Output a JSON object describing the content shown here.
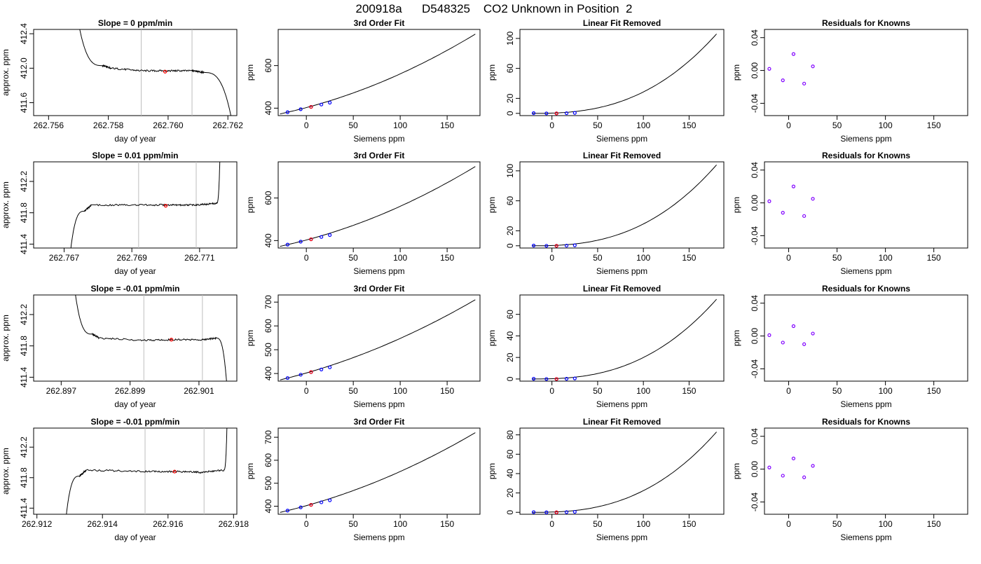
{
  "title": "200918a      D548325    CO2 Unknown in Position  2",
  "colors": {
    "trace": "#000000",
    "point_edge": "#0000ff",
    "point_unknown": "#ff0000",
    "residual": "#8000ff",
    "window": "#bebebe"
  },
  "rows": [
    {
      "p1": {
        "title": "Slope =  0  ppm/min",
        "xlabel": "day of year",
        "ylabel": "approx. ppm",
        "xticks": [
          "262.756",
          "262.758",
          "262.760",
          "262.762"
        ],
        "yticks": [
          "411.6",
          "412.0",
          "412.4"
        ]
      },
      "p2": {
        "title": "3rd Order Fit",
        "xlabel": "Siemens ppm",
        "ylabel": "ppm",
        "xticks": [
          "0",
          "50",
          "100",
          "150"
        ],
        "yticks": [
          "400",
          "600"
        ]
      },
      "p3": {
        "title": "Linear Fit Removed",
        "xlabel": "Siemens ppm",
        "ylabel": "ppm",
        "xticks": [
          "0",
          "50",
          "100",
          "150"
        ],
        "yticks": [
          "0",
          "20",
          "60",
          "100"
        ]
      },
      "p4": {
        "title": "Residuals for Knowns",
        "xlabel": "Siemens ppm",
        "ylabel": "ppm",
        "xticks": [
          "0",
          "50",
          "100",
          "150"
        ],
        "yticks": [
          "-0.04",
          "0.00",
          "0.04"
        ]
      }
    },
    {
      "p1": {
        "title": "Slope =  0.01  ppm/min",
        "xlabel": "day of year",
        "ylabel": "approx. ppm",
        "xticks": [
          "262.767",
          "262.769",
          "262.771"
        ],
        "yticks": [
          "411.4",
          "411.8",
          "412.2"
        ]
      },
      "p2": {
        "title": "3rd Order Fit",
        "xlabel": "Siemens ppm",
        "ylabel": "ppm",
        "xticks": [
          "0",
          "50",
          "100",
          "150"
        ],
        "yticks": [
          "400",
          "600"
        ]
      },
      "p3": {
        "title": "Linear Fit Removed",
        "xlabel": "Siemens ppm",
        "ylabel": "ppm",
        "xticks": [
          "0",
          "50",
          "100",
          "150"
        ],
        "yticks": [
          "0",
          "20",
          "60",
          "100"
        ]
      },
      "p4": {
        "title": "Residuals for Knowns",
        "xlabel": "Siemens ppm",
        "ylabel": "ppm",
        "xticks": [
          "0",
          "50",
          "100",
          "150"
        ],
        "yticks": [
          "-0.04",
          "0.00",
          "0.04"
        ]
      }
    },
    {
      "p1": {
        "title": "Slope =  -0.01  ppm/min",
        "xlabel": "day of year",
        "ylabel": "approx. ppm",
        "xticks": [
          "262.897",
          "262.899",
          "262.901"
        ],
        "yticks": [
          "411.4",
          "411.8",
          "412.2"
        ]
      },
      "p2": {
        "title": "3rd Order Fit",
        "xlabel": "Siemens ppm",
        "ylabel": "ppm",
        "xticks": [
          "0",
          "50",
          "100",
          "150"
        ],
        "yticks": [
          "400",
          "500",
          "600",
          "700"
        ]
      },
      "p3": {
        "title": "Linear Fit Removed",
        "xlabel": "Siemens ppm",
        "ylabel": "ppm",
        "xticks": [
          "0",
          "50",
          "100",
          "150"
        ],
        "yticks": [
          "0",
          "20",
          "40",
          "60"
        ]
      },
      "p4": {
        "title": "Residuals for Knowns",
        "xlabel": "Siemens ppm",
        "ylabel": "ppm",
        "xticks": [
          "0",
          "50",
          "100",
          "150"
        ],
        "yticks": [
          "-0.04",
          "0.00",
          "0.04"
        ]
      }
    },
    {
      "p1": {
        "title": "Slope =  -0.01  ppm/min",
        "xlabel": "day of year",
        "ylabel": "approx. ppm",
        "xticks": [
          "262.912",
          "262.914",
          "262.916",
          "262.918"
        ],
        "yticks": [
          "411.4",
          "411.8",
          "412.2"
        ]
      },
      "p2": {
        "title": "3rd Order Fit",
        "xlabel": "Siemens ppm",
        "ylabel": "ppm",
        "xticks": [
          "0",
          "50",
          "100",
          "150"
        ],
        "yticks": [
          "400",
          "500",
          "600",
          "700"
        ]
      },
      "p3": {
        "title": "Linear Fit Removed",
        "xlabel": "Siemens ppm",
        "ylabel": "ppm",
        "xticks": [
          "0",
          "50",
          "100",
          "150"
        ],
        "yticks": [
          "0",
          "20",
          "40",
          "60",
          "80"
        ]
      },
      "p4": {
        "title": "Residuals for Knowns",
        "xlabel": "Siemens ppm",
        "ylabel": "ppm",
        "xticks": [
          "0",
          "50",
          "100",
          "150"
        ],
        "yticks": [
          "-0.04",
          "0.00",
          "0.04"
        ]
      }
    }
  ],
  "chart_data": [
    {
      "type": "line",
      "title": "Slope =  0  ppm/min",
      "xlabel": "day of year",
      "ylabel": "approx. ppm",
      "xlim": [
        262.7555,
        262.7623
      ],
      "ylim": [
        411.45,
        412.45
      ],
      "series": [
        {
          "x": [
            262.7568,
            262.7578,
            262.7581,
            262.7591,
            262.76,
            262.7608,
            262.7612,
            262.7621
          ],
          "y": [
            413.0,
            412.03,
            412.0,
            411.97,
            411.97,
            411.97,
            411.95,
            411.45
          ]
        }
      ],
      "window": [
        262.7591,
        262.7608
      ],
      "unknown_point": {
        "x": 262.7599,
        "y": 411.96
      }
    },
    {
      "type": "scatter",
      "title": "3rd Order Fit",
      "xlabel": "Siemens ppm",
      "ylabel": "ppm",
      "xlim": [
        -30,
        185
      ],
      "ylim": [
        365,
        770
      ],
      "knowns": {
        "x": [
          -20,
          -6,
          5,
          16,
          25
        ],
        "y": [
          381,
          395,
          406,
          417,
          426
        ]
      },
      "unknown": {
        "x": 5,
        "y": 406
      },
      "fit_endpoints": {
        "x": [
          -28,
          180
        ],
        "y": [
          373,
          748
        ]
      }
    },
    {
      "type": "scatter",
      "title": "Linear Fit Removed",
      "xlabel": "Siemens ppm",
      "ylabel": "ppm",
      "xlim": [
        -35,
        188
      ],
      "ylim": [
        -3,
        112
      ],
      "knowns": {
        "x": [
          -20,
          -6,
          5,
          16,
          25
        ],
        "y": [
          0.3,
          0,
          0,
          0.2,
          0.6
        ]
      },
      "unknown": {
        "x": 5,
        "y": 0
      },
      "curve_end": {
        "x": 180,
        "y": 106
      }
    },
    {
      "type": "scatter",
      "title": "Residuals for Knowns",
      "xlabel": "Siemens ppm",
      "ylabel": "ppm",
      "xlim": [
        -25,
        185
      ],
      "ylim": [
        -0.055,
        0.05
      ],
      "knowns": {
        "x": [
          -20,
          -6,
          5,
          16,
          25
        ],
        "y": [
          0.002,
          -0.012,
          0.02,
          -0.016,
          0.005
        ]
      }
    },
    {
      "type": "line",
      "title": "Slope =  0.01  ppm/min",
      "xlabel": "day of year",
      "ylabel": "approx. ppm",
      "xlim": [
        262.7661,
        262.7721
      ],
      "ylim": [
        411.35,
        412.45
      ],
      "series": [
        {
          "x": [
            262.7672,
            262.7676,
            262.7678,
            262.7692,
            262.7702,
            262.7709,
            262.7715,
            262.7716
          ],
          "y": [
            411.35,
            411.82,
            411.9,
            411.9,
            411.9,
            411.9,
            411.92,
            412.5
          ]
        }
      ],
      "window": [
        262.7692,
        262.7709
      ],
      "unknown_point": {
        "x": 262.77,
        "y": 411.89
      }
    },
    {
      "type": "scatter",
      "title": "3rd Order Fit",
      "xlabel": "Siemens ppm",
      "ylabel": "ppm",
      "xlim": [
        -30,
        185
      ],
      "ylim": [
        365,
        770
      ],
      "knowns": {
        "x": [
          -20,
          -6,
          5,
          16,
          25
        ],
        "y": [
          381,
          395,
          406,
          417,
          426
        ]
      },
      "unknown": {
        "x": 5,
        "y": 406
      },
      "fit_endpoints": {
        "x": [
          -28,
          180
        ],
        "y": [
          373,
          748
        ]
      }
    },
    {
      "type": "scatter",
      "title": "Linear Fit Removed",
      "xlabel": "Siemens ppm",
      "ylabel": "ppm",
      "xlim": [
        -35,
        188
      ],
      "ylim": [
        -3,
        112
      ],
      "knowns": {
        "x": [
          -20,
          -6,
          5,
          16,
          25
        ],
        "y": [
          0.3,
          0,
          0,
          0.2,
          0.6
        ]
      },
      "unknown": {
        "x": 5,
        "y": 0
      },
      "curve_end": {
        "x": 180,
        "y": 108
      }
    },
    {
      "type": "scatter",
      "title": "Residuals for Knowns",
      "xlabel": "Siemens ppm",
      "ylabel": "ppm",
      "xlim": [
        -25,
        185
      ],
      "ylim": [
        -0.055,
        0.05
      ],
      "knowns": {
        "x": [
          -20,
          -6,
          5,
          16,
          25
        ],
        "y": [
          0.002,
          -0.012,
          0.02,
          -0.016,
          0.005
        ]
      }
    },
    {
      "type": "line",
      "title": "Slope =  -0.01  ppm/min",
      "xlabel": "day of year",
      "ylabel": "approx. ppm",
      "xlim": [
        262.8962,
        262.9021
      ],
      "ylim": [
        411.35,
        412.45
      ],
      "series": [
        {
          "x": [
            262.8974,
            262.8979,
            262.8981,
            262.8994,
            262.9003,
            262.9011,
            262.9015,
            262.9018
          ],
          "y": [
            412.5,
            411.95,
            411.9,
            411.87,
            411.88,
            411.88,
            411.9,
            411.35
          ]
        }
      ],
      "window": [
        262.8994,
        262.9011
      ],
      "unknown_point": {
        "x": 262.9002,
        "y": 411.88
      }
    },
    {
      "type": "scatter",
      "title": "3rd Order Fit",
      "xlabel": "Siemens ppm",
      "ylabel": "ppm",
      "xlim": [
        -30,
        185
      ],
      "ylim": [
        368,
        730
      ],
      "knowns": {
        "x": [
          -20,
          -6,
          5,
          16,
          25
        ],
        "y": [
          381,
          395,
          406,
          417,
          426
        ]
      },
      "unknown": {
        "x": 5,
        "y": 406
      },
      "fit_endpoints": {
        "x": [
          -28,
          180
        ],
        "y": [
          374,
          710
        ]
      }
    },
    {
      "type": "scatter",
      "title": "Linear Fit Removed",
      "xlabel": "Siemens ppm",
      "ylabel": "ppm",
      "xlim": [
        -35,
        188
      ],
      "ylim": [
        -2,
        78
      ],
      "knowns": {
        "x": [
          -20,
          -6,
          5,
          16,
          25
        ],
        "y": [
          0.2,
          0,
          0,
          0.2,
          0.5
        ]
      },
      "unknown": {
        "x": 5,
        "y": 0
      },
      "curve_end": {
        "x": 180,
        "y": 74
      }
    },
    {
      "type": "scatter",
      "title": "Residuals for Knowns",
      "xlabel": "Siemens ppm",
      "ylabel": "ppm",
      "xlim": [
        -25,
        185
      ],
      "ylim": [
        -0.055,
        0.05
      ],
      "knowns": {
        "x": [
          -20,
          -6,
          5,
          16,
          25
        ],
        "y": [
          0.001,
          -0.008,
          0.012,
          -0.01,
          0.003
        ]
      }
    },
    {
      "type": "line",
      "title": "Slope =  -0.01  ppm/min",
      "xlabel": "day of year",
      "ylabel": "approx. ppm",
      "xlim": [
        262.9119,
        262.9181
      ],
      "ylim": [
        411.32,
        412.45
      ],
      "series": [
        {
          "x": [
            262.9129,
            262.9133,
            262.9135,
            262.9153,
            262.9163,
            262.917,
            262.9177,
            262.9178
          ],
          "y": [
            411.32,
            411.82,
            411.9,
            411.88,
            411.88,
            411.87,
            411.9,
            412.5
          ]
        }
      ],
      "window": [
        262.9153,
        262.9171
      ],
      "unknown_point": {
        "x": 262.9162,
        "y": 411.88
      }
    },
    {
      "type": "scatter",
      "title": "3rd Order Fit",
      "xlabel": "Siemens ppm",
      "ylabel": "ppm",
      "xlim": [
        -30,
        185
      ],
      "ylim": [
        365,
        740
      ],
      "knowns": {
        "x": [
          -20,
          -6,
          5,
          16,
          25
        ],
        "y": [
          381,
          395,
          406,
          417,
          426
        ]
      },
      "unknown": {
        "x": 5,
        "y": 406
      },
      "fit_endpoints": {
        "x": [
          -28,
          180
        ],
        "y": [
          372,
          720
        ]
      }
    },
    {
      "type": "scatter",
      "title": "Linear Fit Removed",
      "xlabel": "Siemens ppm",
      "ylabel": "ppm",
      "xlim": [
        -35,
        188
      ],
      "ylim": [
        -2,
        87
      ],
      "knowns": {
        "x": [
          -20,
          -6,
          5,
          16,
          25
        ],
        "y": [
          0.2,
          0,
          0,
          0.2,
          0.5
        ]
      },
      "unknown": {
        "x": 5,
        "y": 0
      },
      "curve_end": {
        "x": 180,
        "y": 83
      }
    },
    {
      "type": "scatter",
      "title": "Residuals for Knowns",
      "xlabel": "Siemens ppm",
      "ylabel": "ppm",
      "xlim": [
        -25,
        185
      ],
      "ylim": [
        -0.055,
        0.05
      ],
      "knowns": {
        "x": [
          -20,
          -6,
          5,
          16,
          25
        ],
        "y": [
          0.002,
          -0.008,
          0.013,
          -0.01,
          0.004
        ]
      }
    }
  ]
}
